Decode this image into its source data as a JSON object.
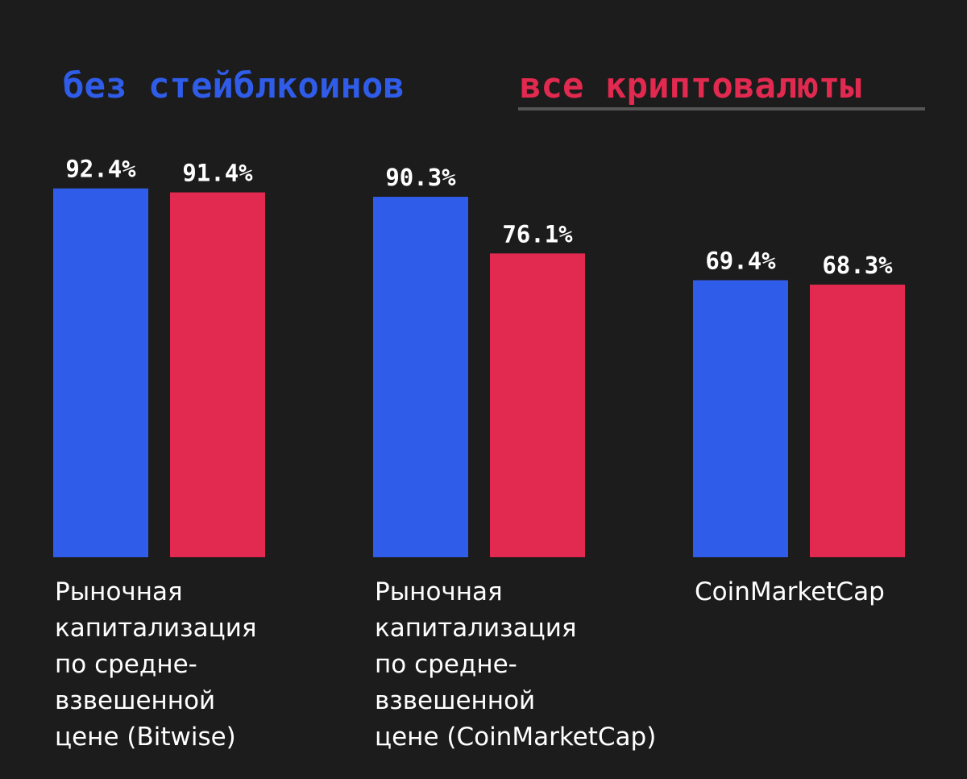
{
  "chart_data": {
    "type": "bar",
    "categories": [
      "Рыночная капитализация по средне- взвешенной цене (Bitwise)",
      "Рыночная капитализация по средне- взвешенной цене (CoinMarketCap)",
      "CoinMarketCap"
    ],
    "category_lines": [
      [
        "Рыночная",
        "капитализация",
        "по средне-",
        "взвешенной",
        "цене (Bitwise)"
      ],
      [
        "Рыночная",
        "капитализация",
        "по средне-",
        "взвешенной",
        "цене (CoinMarketCap)"
      ],
      [
        "CoinMarketCap"
      ]
    ],
    "series": [
      {
        "name": "без стейблкоинов",
        "values": [
          92.4,
          90.3,
          69.4
        ],
        "labels": [
          "92.4%",
          "90.3%",
          "69.4%"
        ],
        "color": "#2f5ce8"
      },
      {
        "name": "все криптовалюты",
        "values": [
          91.4,
          76.1,
          68.3
        ],
        "labels": [
          "91.4%",
          "76.1%",
          "68.3%"
        ],
        "color": "#e2294f"
      }
    ],
    "ylim": [
      0,
      100
    ],
    "grid": false,
    "legend_position": "top",
    "legend_active_series": 1,
    "legend_underline_color": "#555555"
  }
}
